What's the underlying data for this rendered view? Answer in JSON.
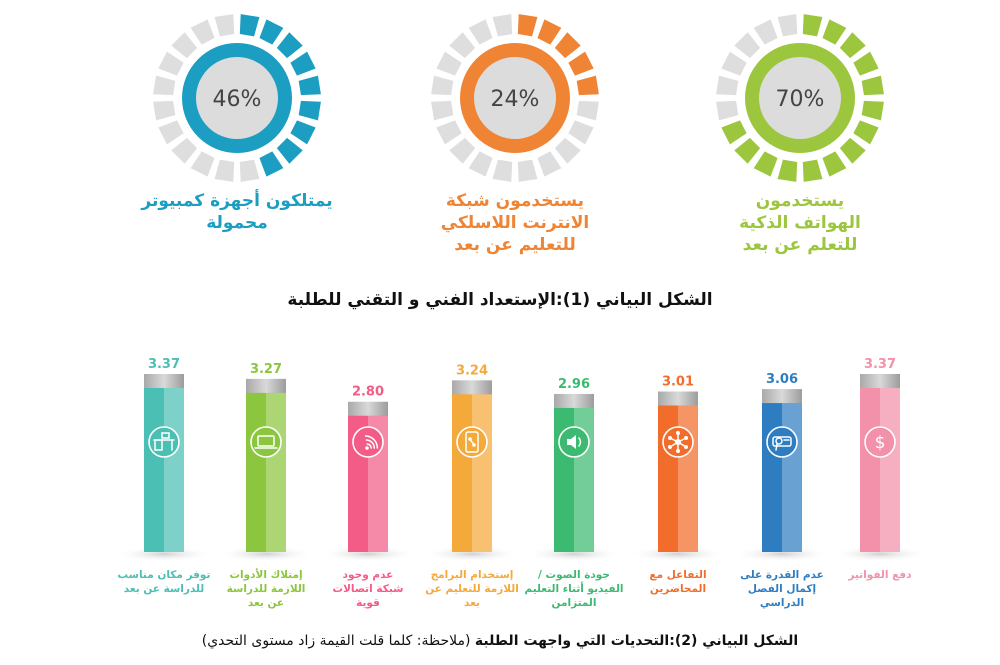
{
  "chart_data": [
    {
      "type": "gauge",
      "items": [
        {
          "value": 70,
          "display": "70%",
          "label_lines": [
            "يستخدمون",
            "الهواتف الذكية",
            "للتعلم عن بعد"
          ],
          "color": "#9cc63d"
        },
        {
          "value": 24,
          "display": "24%",
          "label_lines": [
            "يستخدمون شبكة",
            "الانترنت اللاسلكي",
            "للتعليم عن بعد"
          ],
          "color": "#ef8434"
        },
        {
          "value": 46,
          "display": "46%",
          "label_lines": [
            "يمتلكون أجهزة كمبيوتر",
            "محمولة"
          ],
          "color": "#1c9ec2"
        }
      ],
      "title": "الشكل البياني (1):الإستعداد الفني و التقني للطلبة"
    },
    {
      "type": "bar",
      "title_bold": "الشكل البياني (2):التحديات التي واجهت الطلبة",
      "title_note": "(ملاحظة: كلما قلت القيمة زاد مستوى التحدي)",
      "ylim": [
        0,
        3.6
      ],
      "bars": [
        {
          "value": 3.37,
          "display": "3.37",
          "label_lines": [
            "دفع الفواتير"
          ],
          "color": "#f291a9",
          "icon": "dollar-icon"
        },
        {
          "value": 3.06,
          "display": "3.06",
          "label_lines": [
            "عدم القدرة على",
            "إكمال الفصل",
            "الدراسي"
          ],
          "color": "#2f7dc1",
          "icon": "certificate-icon"
        },
        {
          "value": 3.01,
          "display": "3.01",
          "label_lines": [
            "التفاعل مع",
            "المحاضرين"
          ],
          "color": "#f26d2b",
          "icon": "network-icon"
        },
        {
          "value": 2.96,
          "display": "2.96",
          "label_lines": [
            "جودة الصوت /",
            "الفيديو أثناء التعليم",
            "المتزامن"
          ],
          "color": "#3dba71",
          "icon": "speaker-icon"
        },
        {
          "value": 3.24,
          "display": "3.24",
          "label_lines": [
            "إستخدام البرامج",
            "اللازمة للتعليم عن",
            "بعد"
          ],
          "color": "#f4a93b",
          "icon": "phone-app-icon"
        },
        {
          "value": 2.8,
          "display": "2.80",
          "label_lines": [
            "عدم وجود",
            "شبكة اتصالات",
            "قوية"
          ],
          "color": "#f25c87",
          "icon": "wifi-icon"
        },
        {
          "value": 3.27,
          "display": "3.27",
          "label_lines": [
            "إمتلاك الأدوات",
            "اللازمة للدراسة",
            "عن بعد"
          ],
          "color": "#8cc63f",
          "icon": "laptop-icon"
        },
        {
          "value": 3.37,
          "display": "3.37",
          "label_lines": [
            "توفر مكان مناسب",
            "للدراسة عن بعد"
          ],
          "color": "#4bbfb3",
          "icon": "desk-icon"
        }
      ]
    }
  ]
}
